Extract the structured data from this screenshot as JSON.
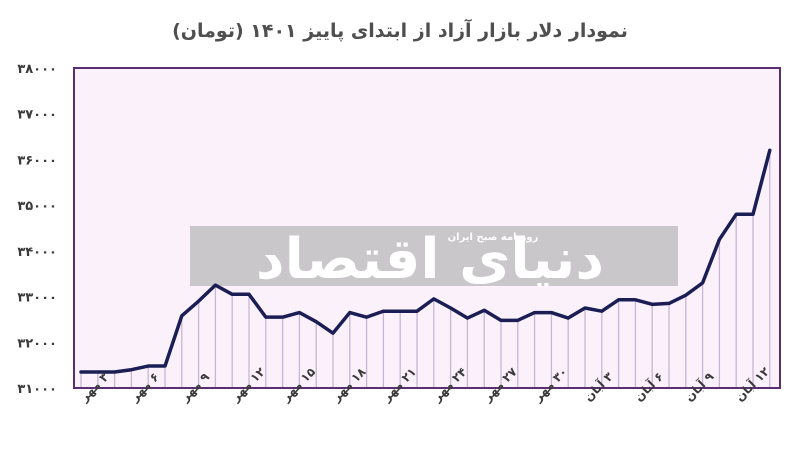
{
  "chart_data": {
    "type": "line",
    "title": "نمودار دلار بازار آزاد از ابتدای پاییز ۱۴۰۱ (تومان)",
    "ylim": [
      31000,
      38000
    ],
    "y_ticks": [
      {
        "value": 31000,
        "label": "۳۱۰۰۰"
      },
      {
        "value": 32000,
        "label": "۳۲۰۰۰"
      },
      {
        "value": 33000,
        "label": "۳۳۰۰۰"
      },
      {
        "value": 34000,
        "label": "۳۴۰۰۰"
      },
      {
        "value": 35000,
        "label": "۳۵۰۰۰"
      },
      {
        "value": 36000,
        "label": "۳۶۰۰۰"
      },
      {
        "value": 37000,
        "label": "۳۷۰۰۰"
      },
      {
        "value": 38000,
        "label": "۳۸۰۰۰"
      }
    ],
    "x_labels": [
      {
        "index": 0,
        "label": "۳ مهر"
      },
      {
        "index": 3,
        "label": "۶ مهر"
      },
      {
        "index": 6,
        "label": "۹ مهر"
      },
      {
        "index": 9,
        "label": "۱۲ مهر"
      },
      {
        "index": 12,
        "label": "۱۵ مهر"
      },
      {
        "index": 15,
        "label": "۱۸ مهر"
      },
      {
        "index": 18,
        "label": "۲۱ مهر"
      },
      {
        "index": 21,
        "label": "۲۴ مهر"
      },
      {
        "index": 24,
        "label": "۲۷ مهر"
      },
      {
        "index": 27,
        "label": "۳۰ مهر"
      },
      {
        "index": 30,
        "label": "۳ آبان"
      },
      {
        "index": 33,
        "label": "۶ آبان"
      },
      {
        "index": 36,
        "label": "۹ آبان"
      },
      {
        "index": 39,
        "label": "۱۲ آبان"
      }
    ],
    "values": [
      31350,
      31350,
      31350,
      31400,
      31480,
      31480,
      32580,
      32900,
      33250,
      33050,
      33050,
      32550,
      32550,
      32650,
      32450,
      32200,
      32650,
      32550,
      32680,
      32680,
      32680,
      32950,
      32750,
      32530,
      32700,
      32480,
      32480,
      32650,
      32650,
      32530,
      32750,
      32680,
      32930,
      32930,
      32830,
      32850,
      33030,
      33300,
      34250,
      34800,
      34800,
      36200
    ],
    "grid": false,
    "colors": {
      "line": "#1b1e55",
      "plot_background": "#fbf1fb",
      "frame": "#5b2e73",
      "drop_lines": "#c9b6d6"
    }
  },
  "watermark": {
    "brand": "دنیای اقتصاد",
    "tagline": "روزنامه صبح ایران"
  }
}
